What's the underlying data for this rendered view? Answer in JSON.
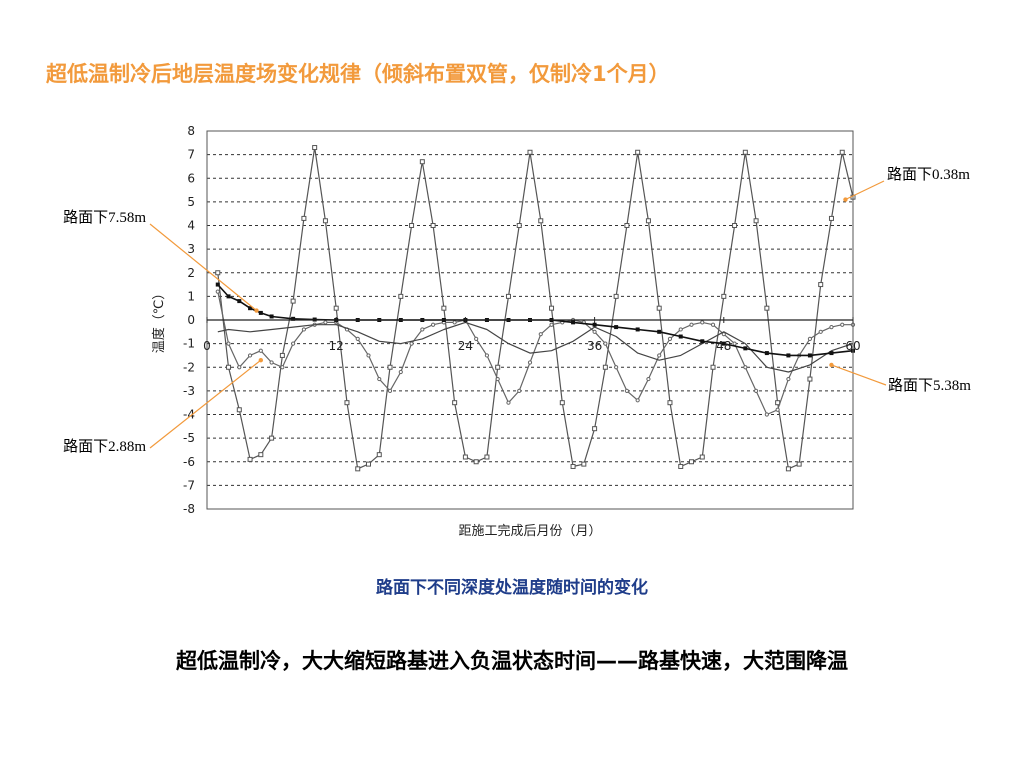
{
  "slide": {
    "title": "超低温制冷后地层温度场变化规律（倾斜布置双管，仅制冷1个月）",
    "caption": "路面下不同深度处温度随时间的变化",
    "conclusion": "超低温制冷，大大缩短路基进入负温状态时间——路基快速，大范围降温",
    "title_color": "#f29a3c",
    "caption_color": "#1f3d8a",
    "arrow_color": "#f29a3c"
  },
  "chart_data": {
    "type": "line",
    "xlabel": "距施工完成后月份（月）",
    "ylabel": "温度（℃）",
    "xlim": [
      0,
      60
    ],
    "ylim": [
      -8,
      8
    ],
    "x_ticks": [
      0,
      12,
      24,
      36,
      48,
      60
    ],
    "y_ticks": [
      8,
      7,
      6,
      5,
      4,
      3,
      2,
      1,
      0,
      -1,
      -2,
      -3,
      -4,
      -5,
      -6,
      -7,
      -8
    ],
    "grid": "horizontal dashed",
    "series": [
      {
        "name": "路面下0.38m",
        "marker": "open-square",
        "color": "#555555",
        "x": [
          1,
          2,
          3,
          4,
          5,
          6,
          7,
          8,
          9,
          10,
          11,
          12,
          13,
          14,
          15,
          16,
          17,
          18,
          19,
          20,
          21,
          22,
          23,
          24,
          25,
          26,
          27,
          28,
          29,
          30,
          31,
          32,
          33,
          34,
          35,
          36,
          37,
          38,
          39,
          40,
          41,
          42,
          43,
          44,
          45,
          46,
          47,
          48,
          49,
          50,
          51,
          52,
          53,
          54,
          55,
          56,
          57,
          58,
          59,
          60
        ],
        "y": [
          2.0,
          -2.0,
          -3.8,
          -5.9,
          -5.7,
          -5.0,
          -1.5,
          0.8,
          4.3,
          7.3,
          4.2,
          0.5,
          -3.5,
          -6.3,
          -6.1,
          -5.7,
          -2.0,
          1.0,
          4.0,
          6.7,
          4.0,
          0.5,
          -3.5,
          -5.8,
          -6.0,
          -5.8,
          -2.0,
          1.0,
          4.0,
          7.1,
          4.2,
          0.5,
          -3.5,
          -6.2,
          -6.1,
          -4.6,
          -2.0,
          1.0,
          4.0,
          7.1,
          4.2,
          0.5,
          -3.5,
          -6.2,
          -6.0,
          -5.8,
          -2.0,
          1.0,
          4.0,
          7.1,
          4.2,
          0.5,
          -3.5,
          -6.3,
          -6.1,
          -2.5,
          1.5,
          4.3,
          7.1,
          5.2
        ]
      },
      {
        "name": "路面下2.88m",
        "marker": "small-circle",
        "color": "#666666",
        "x": [
          1,
          2,
          3,
          4,
          5,
          6,
          7,
          8,
          9,
          10,
          11,
          12,
          13,
          14,
          15,
          16,
          17,
          18,
          19,
          20,
          21,
          22,
          23,
          24,
          25,
          26,
          27,
          28,
          29,
          30,
          31,
          32,
          33,
          34,
          35,
          36,
          37,
          38,
          39,
          40,
          41,
          42,
          43,
          44,
          45,
          46,
          47,
          48,
          49,
          50,
          51,
          52,
          53,
          54,
          55,
          56,
          57,
          58,
          59,
          60
        ],
        "y": [
          1.2,
          -1.0,
          -2.0,
          -1.5,
          -1.3,
          -1.8,
          -2.0,
          -1.0,
          -0.4,
          -0.2,
          -0.1,
          -0.1,
          -0.4,
          -0.8,
          -1.5,
          -2.5,
          -3.0,
          -2.2,
          -1.0,
          -0.4,
          -0.2,
          -0.1,
          -0.1,
          0.0,
          -0.8,
          -1.5,
          -2.5,
          -3.5,
          -3.0,
          -1.8,
          -0.6,
          -0.2,
          -0.1,
          0.0,
          -0.1,
          -0.5,
          -1.0,
          -2.0,
          -3.0,
          -3.4,
          -2.5,
          -1.5,
          -0.8,
          -0.4,
          -0.2,
          -0.1,
          -0.2,
          -0.6,
          -1.0,
          -2.0,
          -3.0,
          -4.0,
          -3.8,
          -2.5,
          -1.5,
          -0.8,
          -0.5,
          -0.3,
          -0.2,
          -0.2
        ]
      },
      {
        "name": "路面下5.38m",
        "marker": "none",
        "color": "#444444",
        "x": [
          1,
          2,
          4,
          6,
          8,
          10,
          12,
          14,
          16,
          18,
          20,
          22,
          24,
          26,
          28,
          30,
          32,
          34,
          36,
          38,
          40,
          42,
          44,
          46,
          48,
          50,
          52,
          54,
          56,
          58,
          60
        ],
        "y": [
          -0.5,
          -0.4,
          -0.5,
          -0.4,
          -0.3,
          -0.2,
          -0.2,
          -0.5,
          -0.9,
          -1.0,
          -0.8,
          -0.4,
          -0.1,
          -0.4,
          -1.0,
          -1.4,
          -1.3,
          -0.9,
          -0.3,
          -0.7,
          -1.4,
          -1.7,
          -1.5,
          -1.0,
          -0.5,
          -1.0,
          -2.0,
          -2.2,
          -1.9,
          -1.3,
          -1.0
        ]
      },
      {
        "name": "路面下7.58m",
        "marker": "filled-square",
        "color": "#111111",
        "x": [
          1,
          2,
          3,
          4,
          5,
          6,
          8,
          10,
          12,
          14,
          16,
          18,
          20,
          22,
          24,
          26,
          28,
          30,
          32,
          34,
          36,
          38,
          40,
          42,
          44,
          46,
          48,
          50,
          52,
          54,
          56,
          58,
          60
        ],
        "y": [
          1.5,
          1.0,
          0.8,
          0.5,
          0.3,
          0.15,
          0.05,
          0.02,
          0.0,
          0.0,
          0.0,
          0.0,
          0.0,
          0.0,
          0.0,
          0.0,
          0.0,
          0.0,
          0.0,
          -0.1,
          -0.2,
          -0.3,
          -0.4,
          -0.5,
          -0.7,
          -0.9,
          -1.0,
          -1.2,
          -1.4,
          -1.5,
          -1.5,
          -1.4,
          -1.3
        ]
      }
    ]
  }
}
